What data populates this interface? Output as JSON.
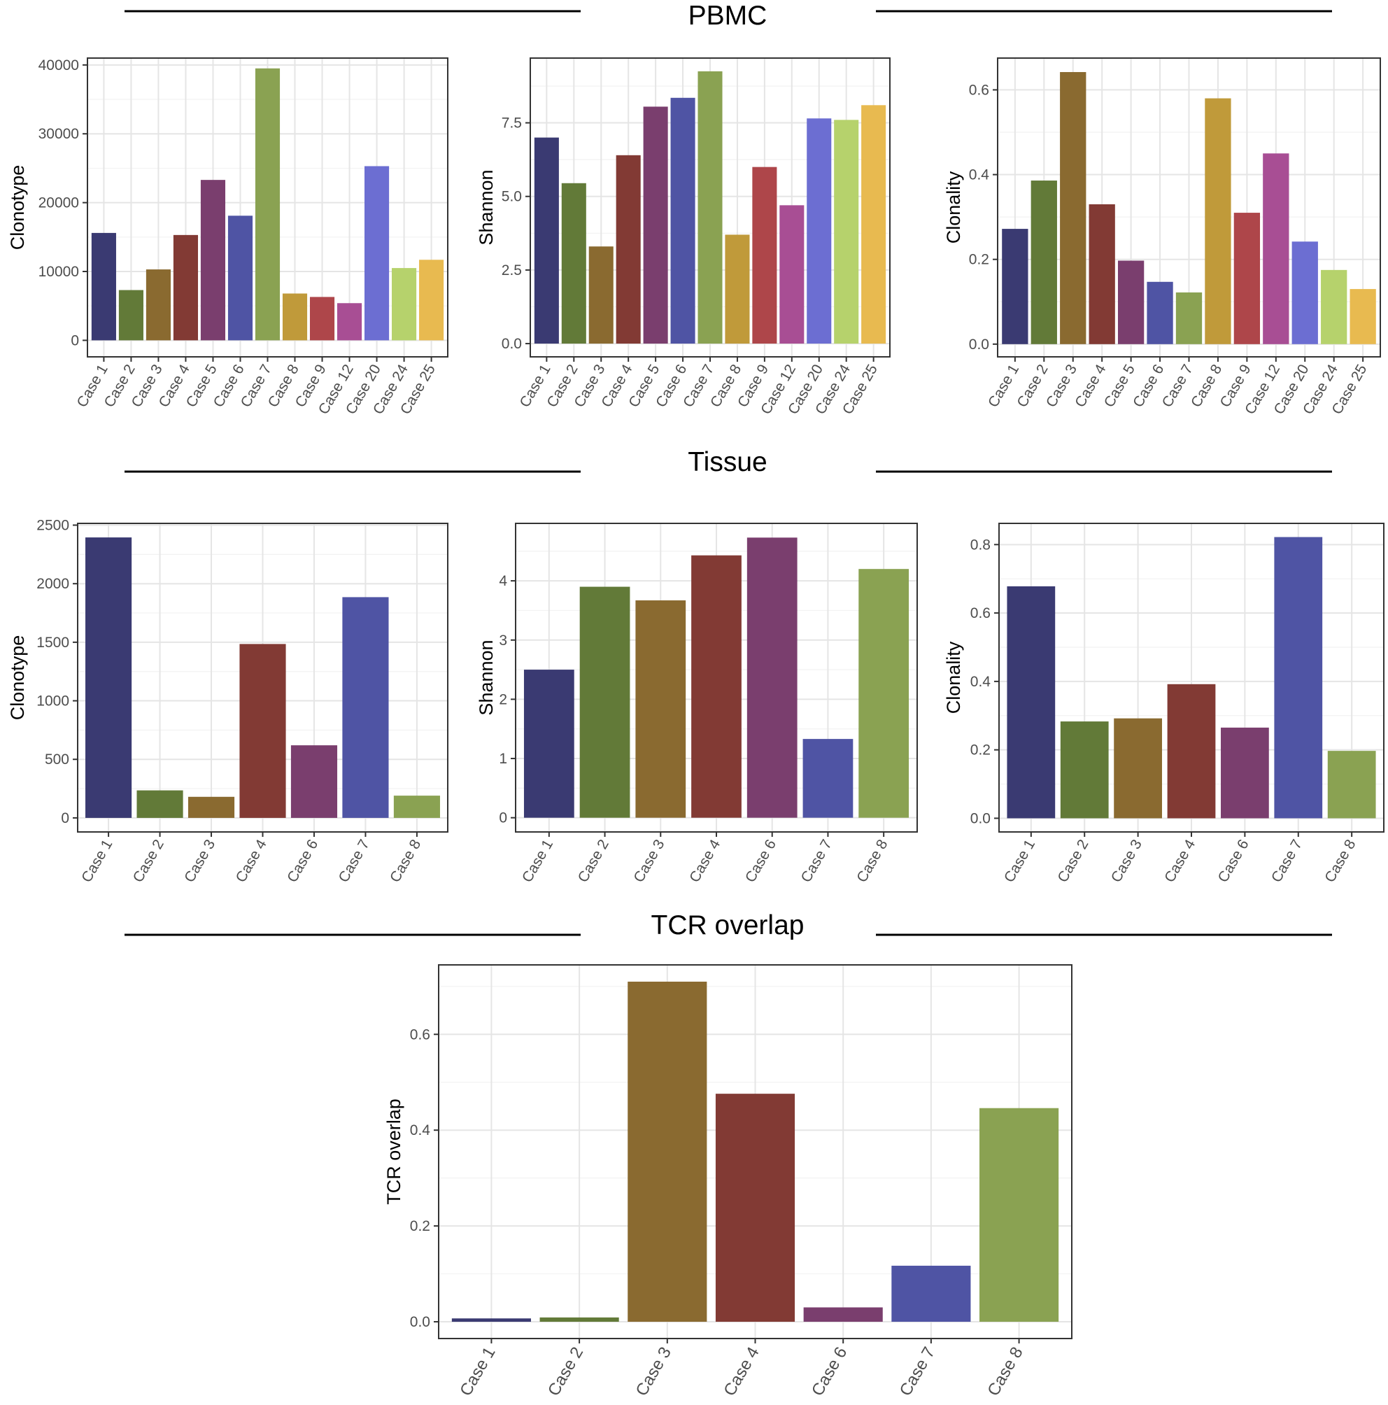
{
  "sections": {
    "pbmc_title": "PBMC",
    "tissue_title": "Tissue",
    "overlap_title": "TCR overlap"
  },
  "colors": {
    "Case 1": "#3a3a72",
    "Case 2": "#627a38",
    "Case 3": "#8a6a30",
    "Case 4": "#823a34",
    "Case 5": "#7a3e6e",
    "Case 6": "#4f54a4",
    "Case 7": "#8aa252",
    "Case 8": "#c09a3a",
    "Case 9": "#ae464a",
    "Case 12": "#a84e94",
    "Case 20": "#6c6ed2",
    "Case 24": "#b6d26c",
    "Case 25": "#e8ba50"
  },
  "tissue_colors": {
    "Case 1": "#3a3a72",
    "Case 2": "#627a38",
    "Case 3": "#8a6a30",
    "Case 4": "#823a34",
    "Case 6": "#7a3e6e",
    "Case 7": "#4f54a4",
    "Case 8": "#8aa252"
  },
  "chart_data": [
    {
      "id": "pbmc-clonotype",
      "type": "bar",
      "group": "PBMC",
      "ylabel": "Clonotype",
      "categories": [
        "Case 1",
        "Case 2",
        "Case 3",
        "Case 4",
        "Case 5",
        "Case 6",
        "Case 7",
        "Case 8",
        "Case 9",
        "Case 12",
        "Case 20",
        "Case 24",
        "Case 25"
      ],
      "values": [
        15600,
        7300,
        10300,
        15300,
        23300,
        18100,
        39500,
        6800,
        6300,
        5400,
        25300,
        10500,
        11700
      ],
      "ylim": [
        -2400,
        41000
      ],
      "yticks": [
        0,
        10000,
        20000,
        30000,
        40000
      ],
      "ytick_labels": [
        "0",
        "10000",
        "20000",
        "30000",
        "40000"
      ],
      "grid": true
    },
    {
      "id": "pbmc-shannon",
      "type": "bar",
      "group": "PBMC",
      "ylabel": "Shannon",
      "categories": [
        "Case 1",
        "Case 2",
        "Case 3",
        "Case 4",
        "Case 5",
        "Case 6",
        "Case 7",
        "Case 8",
        "Case 9",
        "Case 12",
        "Case 20",
        "Case 24",
        "Case 25"
      ],
      "values": [
        7.0,
        5.45,
        3.3,
        6.4,
        8.05,
        8.35,
        9.25,
        3.7,
        6.0,
        4.7,
        7.65,
        7.6,
        8.1
      ],
      "ylim": [
        -0.45,
        9.7
      ],
      "yticks": [
        0,
        2.5,
        5.0,
        7.5
      ],
      "ytick_labels": [
        "0.0",
        "2.5",
        "5.0",
        "7.5"
      ],
      "grid": true
    },
    {
      "id": "pbmc-clonality",
      "type": "bar",
      "group": "PBMC",
      "ylabel": "Clonality",
      "categories": [
        "Case 1",
        "Case 2",
        "Case 3",
        "Case 4",
        "Case 5",
        "Case 6",
        "Case 7",
        "Case 8",
        "Case 9",
        "Case 12",
        "Case 20",
        "Case 24",
        "Case 25"
      ],
      "values": [
        0.272,
        0.386,
        0.642,
        0.33,
        0.197,
        0.147,
        0.122,
        0.58,
        0.31,
        0.45,
        0.242,
        0.175,
        0.13
      ],
      "ylim": [
        -0.03,
        0.675
      ],
      "yticks": [
        0,
        0.2,
        0.4,
        0.6
      ],
      "ytick_labels": [
        "0.0",
        "0.2",
        "0.4",
        "0.6"
      ],
      "grid": true
    },
    {
      "id": "tissue-clonotype",
      "type": "bar",
      "group": "Tissue",
      "ylabel": "Clonotype",
      "categories": [
        "Case 1",
        "Case 2",
        "Case 3",
        "Case 4",
        "Case 6",
        "Case 7",
        "Case 8"
      ],
      "values": [
        2395,
        235,
        180,
        1485,
        620,
        1885,
        190
      ],
      "ylim": [
        -120,
        2515
      ],
      "yticks": [
        0,
        500,
        1000,
        1500,
        2000,
        2500
      ],
      "ytick_labels": [
        "0",
        "500",
        "1000",
        "1500",
        "2000",
        "2500"
      ],
      "grid": true
    },
    {
      "id": "tissue-shannon",
      "type": "bar",
      "group": "Tissue",
      "ylabel": "Shannon",
      "categories": [
        "Case 1",
        "Case 2",
        "Case 3",
        "Case 4",
        "Case 6",
        "Case 7",
        "Case 8"
      ],
      "values": [
        2.5,
        3.9,
        3.67,
        4.43,
        4.73,
        1.33,
        4.2
      ],
      "ylim": [
        -0.24,
        4.97
      ],
      "yticks": [
        0,
        1,
        2,
        3,
        4
      ],
      "ytick_labels": [
        "0",
        "1",
        "2",
        "3",
        "4"
      ],
      "grid": true
    },
    {
      "id": "tissue-clonality",
      "type": "bar",
      "group": "Tissue",
      "ylabel": "Clonality",
      "categories": [
        "Case 1",
        "Case 2",
        "Case 3",
        "Case 4",
        "Case 6",
        "Case 7",
        "Case 8"
      ],
      "values": [
        0.678,
        0.283,
        0.292,
        0.392,
        0.265,
        0.822,
        0.197
      ],
      "ylim": [
        -0.04,
        0.862
      ],
      "yticks": [
        0,
        0.2,
        0.4,
        0.6,
        0.8
      ],
      "ytick_labels": [
        "0.0",
        "0.2",
        "0.4",
        "0.6",
        "0.8"
      ],
      "grid": true
    },
    {
      "id": "tcr-overlap",
      "type": "bar",
      "group": "TCR overlap",
      "ylabel": "TCR overlap",
      "categories": [
        "Case 1",
        "Case 2",
        "Case 3",
        "Case 4",
        "Case 6",
        "Case 7",
        "Case 8"
      ],
      "values": [
        0.007,
        0.009,
        0.71,
        0.476,
        0.03,
        0.117,
        0.446
      ],
      "ylim": [
        -0.035,
        0.745
      ],
      "yticks": [
        0,
        0.2,
        0.4,
        0.6
      ],
      "ytick_labels": [
        "0.0",
        "0.2",
        "0.4",
        "0.6"
      ],
      "grid": true
    }
  ]
}
